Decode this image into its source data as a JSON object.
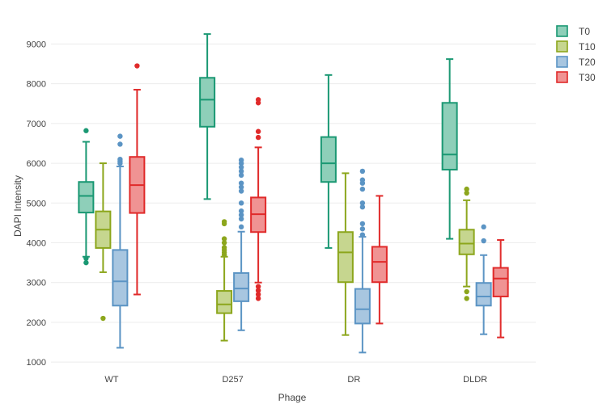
{
  "chart_data": {
    "type": "box",
    "xlabel": "Phage",
    "ylabel": "DAPI Intensity",
    "categories": [
      "WT",
      "D257",
      "DR",
      "DLDR"
    ],
    "ylim": [
      800,
      9700
    ],
    "yticks": [
      1000,
      2000,
      3000,
      4000,
      5000,
      6000,
      7000,
      8000,
      9000
    ],
    "grid": true,
    "legend_position": "top-right",
    "series": [
      {
        "name": "T0",
        "stroke": "#1a9873",
        "fill": "#8ecfb9",
        "boxes": [
          {
            "category": "WT",
            "min": 3650,
            "q1": 4760,
            "median": 5180,
            "q3": 5530,
            "max": 6540,
            "outliers": [
              6820,
              3500,
              3610
            ]
          },
          {
            "category": "D257",
            "min": 5100,
            "q1": 6920,
            "median": 7600,
            "q3": 8150,
            "max": 9250,
            "outliers": []
          },
          {
            "category": "DR",
            "min": 3870,
            "q1": 5530,
            "median": 6000,
            "q3": 6660,
            "max": 8220,
            "outliers": []
          },
          {
            "category": "DLDR",
            "min": 4100,
            "q1": 5840,
            "median": 6220,
            "q3": 7520,
            "max": 8620,
            "outliers": []
          }
        ]
      },
      {
        "name": "T10",
        "stroke": "#8ca61c",
        "fill": "#c6d68f",
        "boxes": [
          {
            "category": "WT",
            "min": 3260,
            "q1": 3870,
            "median": 4330,
            "q3": 4790,
            "max": 6000,
            "outliers": [
              2100
            ]
          },
          {
            "category": "D257",
            "min": 1540,
            "q1": 2230,
            "median": 2450,
            "q3": 2790,
            "max": 3650,
            "outliers": [
              3700,
              3760,
              3820,
              3880,
              4000,
              4100,
              4480,
              4530
            ]
          },
          {
            "category": "DR",
            "min": 1680,
            "q1": 3010,
            "median": 3760,
            "q3": 4270,
            "max": 5750,
            "outliers": []
          },
          {
            "category": "DLDR",
            "min": 2900,
            "q1": 3710,
            "median": 3980,
            "q3": 4330,
            "max": 5070,
            "outliers": [
              5250,
              5350,
              2770,
              2600
            ]
          }
        ]
      },
      {
        "name": "T20",
        "stroke": "#5b94c4",
        "fill": "#a8c6e0",
        "boxes": [
          {
            "category": "WT",
            "min": 1360,
            "q1": 2420,
            "median": 3030,
            "q3": 3820,
            "max": 5920,
            "outliers": [
              6000,
              6050,
              6100,
              6480,
              6680
            ]
          },
          {
            "category": "D257",
            "min": 1800,
            "q1": 2530,
            "median": 2850,
            "q3": 3240,
            "max": 4280,
            "outliers": [
              4400,
              4600,
              4700,
              4800,
              5000,
              5300,
              5400,
              5500,
              5700,
              5800,
              5900,
              6000,
              6080
            ]
          },
          {
            "category": "DR",
            "min": 1240,
            "q1": 1970,
            "median": 2330,
            "q3": 2840,
            "max": 4150,
            "outliers": [
              4200,
              4350,
              4480,
              4900,
              5000,
              5350,
              5500,
              5580,
              5800
            ]
          },
          {
            "category": "DLDR",
            "min": 1700,
            "q1": 2420,
            "median": 2650,
            "q3": 2990,
            "max": 3690,
            "outliers": [
              4050,
              4400
            ]
          }
        ]
      },
      {
        "name": "T30",
        "stroke": "#e02a2a",
        "fill": "#f09393",
        "boxes": [
          {
            "category": "WT",
            "min": 2700,
            "q1": 4750,
            "median": 5450,
            "q3": 6160,
            "max": 7850,
            "outliers": [
              8450
            ]
          },
          {
            "category": "D257",
            "min": 3000,
            "q1": 4270,
            "median": 4720,
            "q3": 5140,
            "max": 6400,
            "outliers": [
              6650,
              6800,
              7520,
              7600,
              2600,
              2700,
              2800,
              2900
            ]
          },
          {
            "category": "DR",
            "min": 1970,
            "q1": 3010,
            "median": 3520,
            "q3": 3900,
            "max": 5180,
            "outliers": []
          },
          {
            "category": "DLDR",
            "min": 1620,
            "q1": 2650,
            "median": 3100,
            "q3": 3370,
            "max": 4070,
            "outliers": []
          }
        ]
      }
    ]
  }
}
